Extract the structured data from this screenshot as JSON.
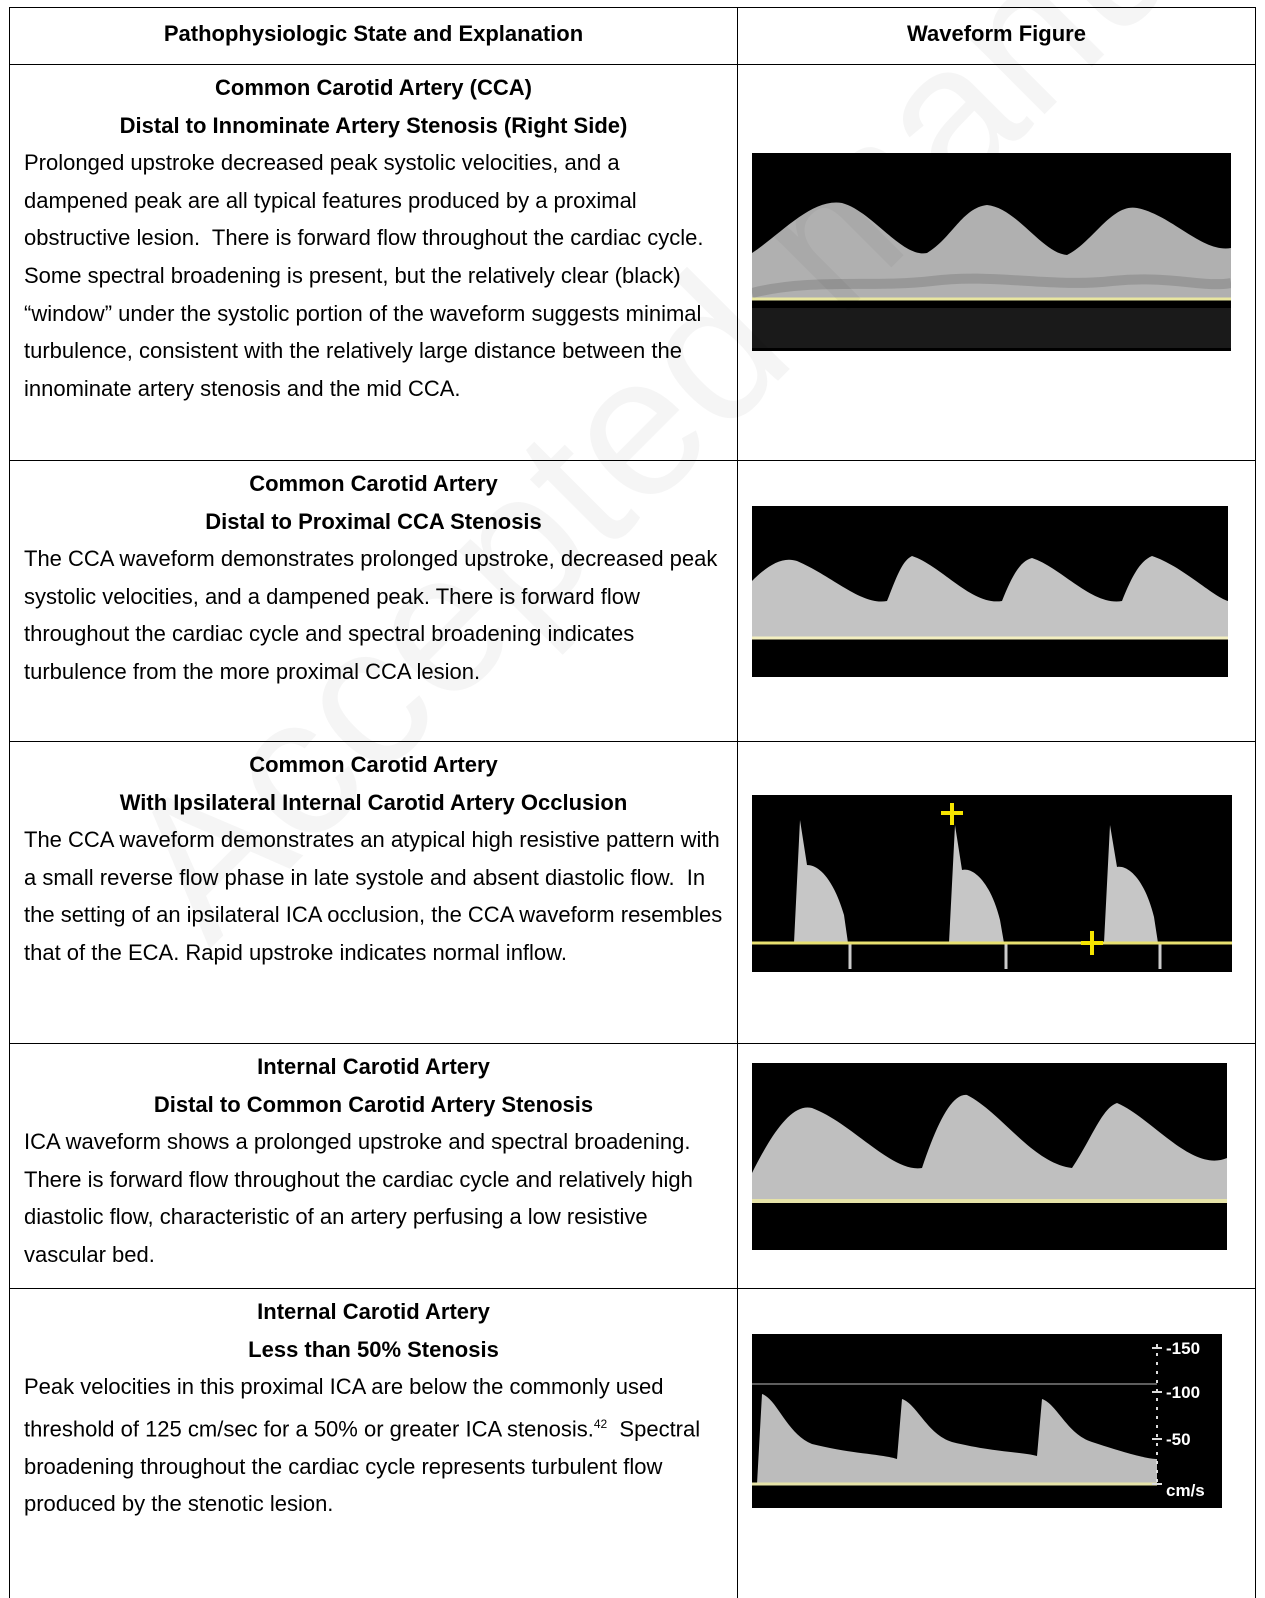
{
  "watermark": "Accepted manuscript",
  "table": {
    "headers": [
      "Pathophysiologic State and Explanation",
      "Waveform Figure"
    ],
    "rows": [
      {
        "title": [
          "Common Carotid Artery (CCA)",
          "Distal to Innominate Artery Stenosis (Right Side)"
        ],
        "text": "Prolonged upstroke decreased peak systolic velocities, and a dampened peak are all typical features produced by a proximal obstructive lesion.  There is forward flow throughout the cardiac cycle. Some spectral broadening is present, but the relatively clear (black) “window” under the systolic portion of the waveform suggests minimal turbulence, consistent with the relatively large distance between the innominate artery stenosis and the mid CCA."
      },
      {
        "title": [
          "Common Carotid Artery",
          "Distal to Proximal CCA Stenosis"
        ],
        "text": "The CCA waveform demonstrates prolonged upstroke, decreased peak systolic velocities, and a dampened peak. There is forward flow throughout the cardiac cycle and spectral broadening indicates turbulence from the more proximal CCA lesion."
      },
      {
        "title": [
          "Common Carotid Artery",
          "With Ipsilateral Internal Carotid Artery Occlusion"
        ],
        "text": "The CCA waveform demonstrates an atypical high resistive pattern with a small reverse flow phase in late systole and absent diastolic flow.  In the setting of an ipsilateral ICA occlusion, the CCA waveform resembles that of the ECA. Rapid upstroke indicates normal inflow."
      },
      {
        "title": [
          "Internal Carotid Artery",
          "Distal to Common Carotid Artery Stenosis"
        ],
        "text": "ICA waveform shows a prolonged upstroke and spectral broadening.  There is forward flow throughout the cardiac cycle and relatively high diastolic flow, characteristic of an artery perfusing a low resistive vascular bed."
      },
      {
        "title": [
          "Internal Carotid Artery",
          "Less than 50% Stenosis"
        ],
        "text": "Peak velocities in this proximal ICA are below the commonly used threshold of 125 cm/sec for a 50% or greater ICA stenosis.",
        "superscript": "42",
        "text_after": "  Spectral broadening throughout the cardiac cycle represents turbulent flow produced by the stenotic lesion.",
        "figure_labels": [
          "-150",
          "-100",
          "-50",
          "cm/s"
        ]
      }
    ]
  }
}
